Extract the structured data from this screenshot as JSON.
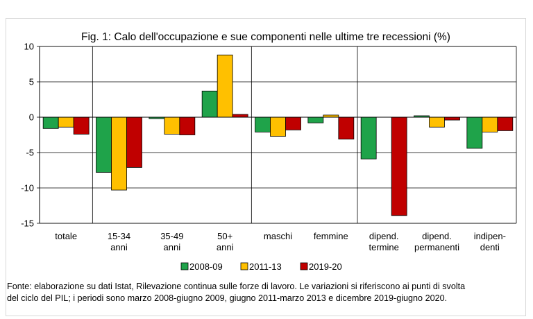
{
  "chart_data": {
    "type": "bar",
    "title": "Fig. 1: Calo dell'occupazione e sue componenti nelle ultime tre recessioni (%)",
    "xlabel": "",
    "ylabel": "",
    "ylim": [
      -15,
      10
    ],
    "yticks": [
      10,
      5,
      0,
      -5,
      -10,
      -15
    ],
    "grid": true,
    "legend_position": "bottom",
    "categories": [
      [
        "totale"
      ],
      [
        "15-34",
        "anni"
      ],
      [
        "35-49",
        "anni"
      ],
      [
        "50+",
        "anni"
      ],
      [
        "maschi"
      ],
      [
        "femmine"
      ],
      [
        "dipend.",
        "termine"
      ],
      [
        "dipend.",
        "permanenti"
      ],
      [
        "indipen-",
        "denti"
      ]
    ],
    "series": [
      {
        "name": "2008-09",
        "color": "#1fa34a",
        "values": [
          -1.6,
          -7.8,
          -0.2,
          3.7,
          -2.1,
          -0.8,
          -5.9,
          0.2,
          -4.4
        ]
      },
      {
        "name": "2011-13",
        "color": "#ffc000",
        "values": [
          -1.4,
          -10.3,
          -2.4,
          8.8,
          -2.7,
          0.3,
          0.0,
          -1.4,
          -2.1
        ]
      },
      {
        "name": "2019-20",
        "color": "#c00000",
        "values": [
          -2.4,
          -7.1,
          -2.5,
          0.4,
          -1.8,
          -3.1,
          -13.9,
          -0.4,
          -1.9
        ]
      }
    ]
  },
  "source": {
    "line1": "Fonte: elaborazione su dati Istat, Rilevazione continua sulle forze di lavoro. Le variazioni si riferiscono ai punti di svolta",
    "line2": "del ciclo del PIL; i periodi sono marzo 2008-giugno 2009, giugno 2011-marzo 2013 e dicembre 2019-giugno 2020."
  }
}
